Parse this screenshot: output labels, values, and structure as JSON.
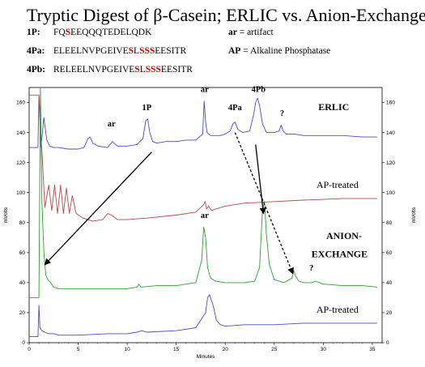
{
  "title": "Tryptic Digest of β-Casein; ERLIC vs. Anion-Exchange",
  "sequences": [
    {
      "label": "1P",
      "colon": ":",
      "parts": [
        {
          "text": "FQ",
          "red": false
        },
        {
          "text": "S",
          "red": true
        },
        {
          "text": "EEQQQTEDELQDK",
          "red": false
        }
      ]
    },
    {
      "label": "4Pa",
      "colon": ":",
      "parts": [
        {
          "text": "ELEELNVPGEIVE",
          "red": false
        },
        {
          "text": "S",
          "red": true
        },
        {
          "text": "L",
          "red": false
        },
        {
          "text": "SSS",
          "red": true
        },
        {
          "text": "EESITR",
          "red": false
        }
      ]
    },
    {
      "label": "4Pb",
      "colon": ":",
      "parts": [
        {
          "text": "RELEELNVPGEIVE",
          "red": false
        },
        {
          "text": "S",
          "red": true
        },
        {
          "text": "L",
          "red": false
        },
        {
          "text": "SSS",
          "red": true
        },
        {
          "text": "EESITR",
          "red": false
        }
      ]
    }
  ],
  "legend": [
    {
      "key": "ar",
      "text": " = artifact"
    },
    {
      "key": "AP",
      "text": " = Alkaline Phosphatase"
    }
  ],
  "chart_data": {
    "type": "line",
    "xlabel": "Minutes",
    "ylabel_left": "mVolts",
    "ylabel_right": "mVolts",
    "xlim": [
      0,
      36
    ],
    "ylim": [
      0,
      170
    ],
    "xticks": [
      0,
      5,
      10,
      15,
      20,
      25,
      30,
      35
    ],
    "yticks": [
      0,
      20,
      40,
      60,
      80,
      100,
      120,
      140,
      160
    ],
    "grid": false,
    "colors": {
      "erlic": "#4a4ad0",
      "erlic_ap": "#b84848",
      "anion": "#2ea02e",
      "anion_ap": "#4a4ad0"
    },
    "series": [
      {
        "key": "erlic",
        "name": "ERLIC",
        "x": [
          0,
          0.5,
          0.9,
          1.0,
          1.2,
          1.5,
          1.8,
          2.1,
          2.5,
          3,
          4,
          5,
          5.6,
          6,
          6.2,
          6.5,
          7,
          8,
          8.5,
          9,
          10,
          11,
          11.6,
          11.9,
          12.1,
          12.3,
          12.6,
          13,
          14,
          15,
          16,
          17,
          17.7,
          17.85,
          18,
          18.15,
          18.5,
          19,
          19.5,
          20,
          20.5,
          20.8,
          21,
          21.3,
          21.8,
          22.5,
          22.9,
          23.1,
          23.3,
          23.5,
          23.8,
          24.2,
          25,
          25.5,
          25.7,
          25.9,
          26.2,
          27,
          28,
          30,
          32,
          34,
          35.5
        ],
        "y": [
          130,
          130,
          130,
          165,
          130,
          150,
          135,
          131,
          130,
          130,
          129,
          129,
          130,
          136,
          137,
          133,
          131,
          130,
          134,
          131,
          131,
          132,
          136,
          148,
          149,
          140,
          134,
          133,
          134,
          134,
          135,
          135,
          139,
          161,
          147,
          140,
          138,
          138,
          138,
          139,
          141,
          146,
          147,
          142,
          140,
          141,
          152,
          160,
          163,
          158,
          146,
          140,
          140,
          141,
          145,
          141,
          139,
          139,
          138,
          138,
          138,
          137,
          137
        ]
      },
      {
        "key": "erlic_ap",
        "name": "AP-treated",
        "x": [
          0,
          1.0,
          1.2,
          1.4,
          1.6,
          2.0,
          2.3,
          2.6,
          2.9,
          3.2,
          3.5,
          3.8,
          4.1,
          4.4,
          4.8,
          5.5,
          6.5,
          7.5,
          8.0,
          8.4,
          9,
          10,
          12,
          15,
          17,
          17.8,
          17.95,
          18.1,
          18.3,
          18.6,
          19,
          20,
          22,
          25,
          28,
          32,
          35.5
        ],
        "y": [
          165,
          165,
          140,
          115,
          90,
          105,
          88,
          105,
          86,
          105,
          86,
          103,
          86,
          98,
          86,
          83,
          81,
          82,
          86,
          85,
          82,
          82,
          83,
          85,
          87,
          92,
          94,
          89,
          91,
          88,
          89,
          91,
          93,
          94,
          95,
          96,
          96
        ]
      },
      {
        "key": "anion",
        "name": "ANION-EXCHANGE",
        "x": [
          0,
          1.0,
          1.15,
          1.3,
          1.5,
          1.7,
          1.9,
          2.2,
          2.5,
          3,
          5,
          8,
          10,
          11.0,
          11.2,
          11.4,
          13,
          15,
          16,
          17,
          17.6,
          17.8,
          18.0,
          18.2,
          18.5,
          19,
          20,
          21,
          22,
          23,
          23.5,
          23.8,
          24.0,
          24.2,
          24.5,
          25,
          26,
          26.8,
          27.0,
          27.2,
          27.5,
          28,
          28.8,
          29.2,
          30,
          32,
          34,
          35.5
        ],
        "y": [
          30,
          30,
          170,
          95,
          60,
          45,
          42,
          40,
          37,
          36,
          36,
          36,
          36,
          37,
          39,
          37,
          38,
          38,
          39,
          40,
          55,
          77,
          70,
          50,
          43,
          41,
          40,
          40,
          40,
          41,
          50,
          88,
          94,
          72,
          52,
          42,
          40,
          43,
          48,
          44,
          41,
          40,
          40,
          41,
          39,
          38,
          38,
          37
        ]
      },
      {
        "key": "anion_ap",
        "name": "AP-treated",
        "x": [
          0,
          0.9,
          1.0,
          1.1,
          1.3,
          1.6,
          2.0,
          2.5,
          3,
          5,
          8,
          10,
          11,
          11.5,
          12,
          15,
          17,
          18.0,
          18.2,
          18.4,
          18.6,
          18.8,
          19.1,
          19.5,
          20,
          22,
          25,
          28,
          32,
          35.5
        ],
        "y": [
          4,
          4,
          25,
          10,
          8,
          7,
          6,
          6,
          5,
          5,
          6,
          6,
          7,
          8,
          7,
          8,
          10,
          20,
          30,
          32,
          28,
          24,
          15,
          12,
          11,
          12,
          12,
          13,
          13,
          13
        ]
      }
    ],
    "offsets": {
      "erlic": 0,
      "erlic_ap": 0,
      "anion": 0,
      "anion_ap": 0
    },
    "peak_labels": [
      {
        "text": "ar",
        "x": 8.4,
        "y": 144
      },
      {
        "text": "1P",
        "x": 12.0,
        "y": 155
      },
      {
        "text": "ar",
        "x": 17.9,
        "y": 167
      },
      {
        "text": "4Pa",
        "x": 21.0,
        "y": 155
      },
      {
        "text": "4Pb",
        "x": 23.4,
        "y": 167
      },
      {
        "text": "?",
        "x": 25.8,
        "y": 151
      },
      {
        "text": "ar",
        "x": 17.9,
        "y": 83
      },
      {
        "text": "?",
        "x": 28.8,
        "y": 48
      }
    ],
    "trace_labels": [
      {
        "text": "ERLIC",
        "x": 29.5,
        "y": 155,
        "bold": true
      },
      {
        "text": "AP-treated",
        "x": 29.3,
        "y": 103,
        "bold": false
      },
      {
        "text": "ANION-",
        "x": 30.3,
        "y": 69,
        "bold": true
      },
      {
        "text": "EXCHANGE",
        "x": 28.8,
        "y": 57,
        "bold": true
      },
      {
        "text": "AP-treated",
        "x": 29.3,
        "y": 20,
        "bold": false
      }
    ],
    "arrows": [
      {
        "from": [
          12.5,
          127
        ],
        "to": [
          1.6,
          52
        ],
        "dashed": false
      },
      {
        "from": [
          23.1,
          132
        ],
        "to": [
          23.9,
          86
        ],
        "dashed": false
      },
      {
        "from": [
          21.0,
          140
        ],
        "to": [
          26.9,
          46
        ],
        "dashed": true
      }
    ]
  }
}
